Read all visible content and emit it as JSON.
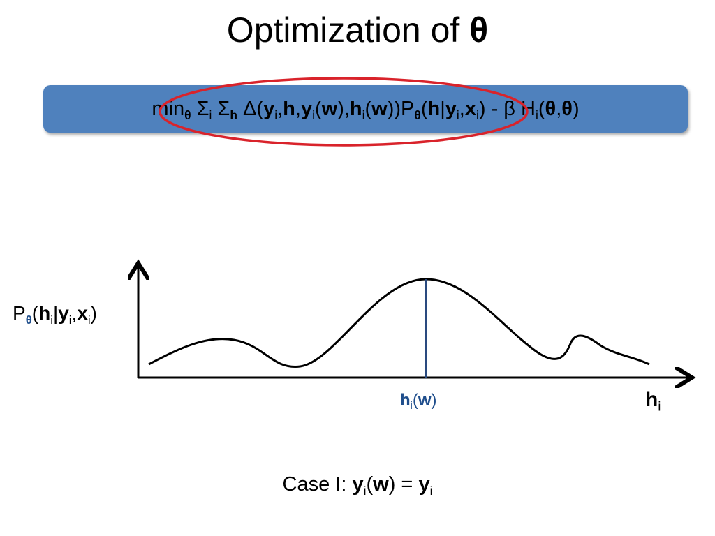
{
  "title": {
    "text": "Optimization of ",
    "symbol": "θ"
  },
  "formula": [
    "min",
    "θ",
    " Σ",
    "i",
    " Σ",
    "h",
    " Δ(",
    "y",
    "i",
    ",",
    "h",
    ",",
    "y",
    "i",
    "(",
    "w",
    "),",
    "h",
    "i",
    "(",
    "w",
    "))P",
    "θ",
    "(",
    "h",
    "|",
    "y",
    "i",
    ",",
    "x",
    "i",
    ")",
    " - β H",
    "i",
    "(",
    "θ",
    ",",
    "θ",
    ")"
  ],
  "plot": {
    "y_label": [
      "P",
      "θ",
      "(",
      "h",
      "i",
      "|",
      "y",
      "i",
      ",",
      "x",
      "i",
      ")"
    ],
    "marker_label": [
      "h",
      "i",
      "(",
      "w",
      ")"
    ],
    "x_label": [
      "h",
      "i"
    ]
  },
  "caption": [
    "Case I: ",
    "y",
    "i",
    "(",
    "w",
    ") = ",
    "y",
    "i"
  ]
}
